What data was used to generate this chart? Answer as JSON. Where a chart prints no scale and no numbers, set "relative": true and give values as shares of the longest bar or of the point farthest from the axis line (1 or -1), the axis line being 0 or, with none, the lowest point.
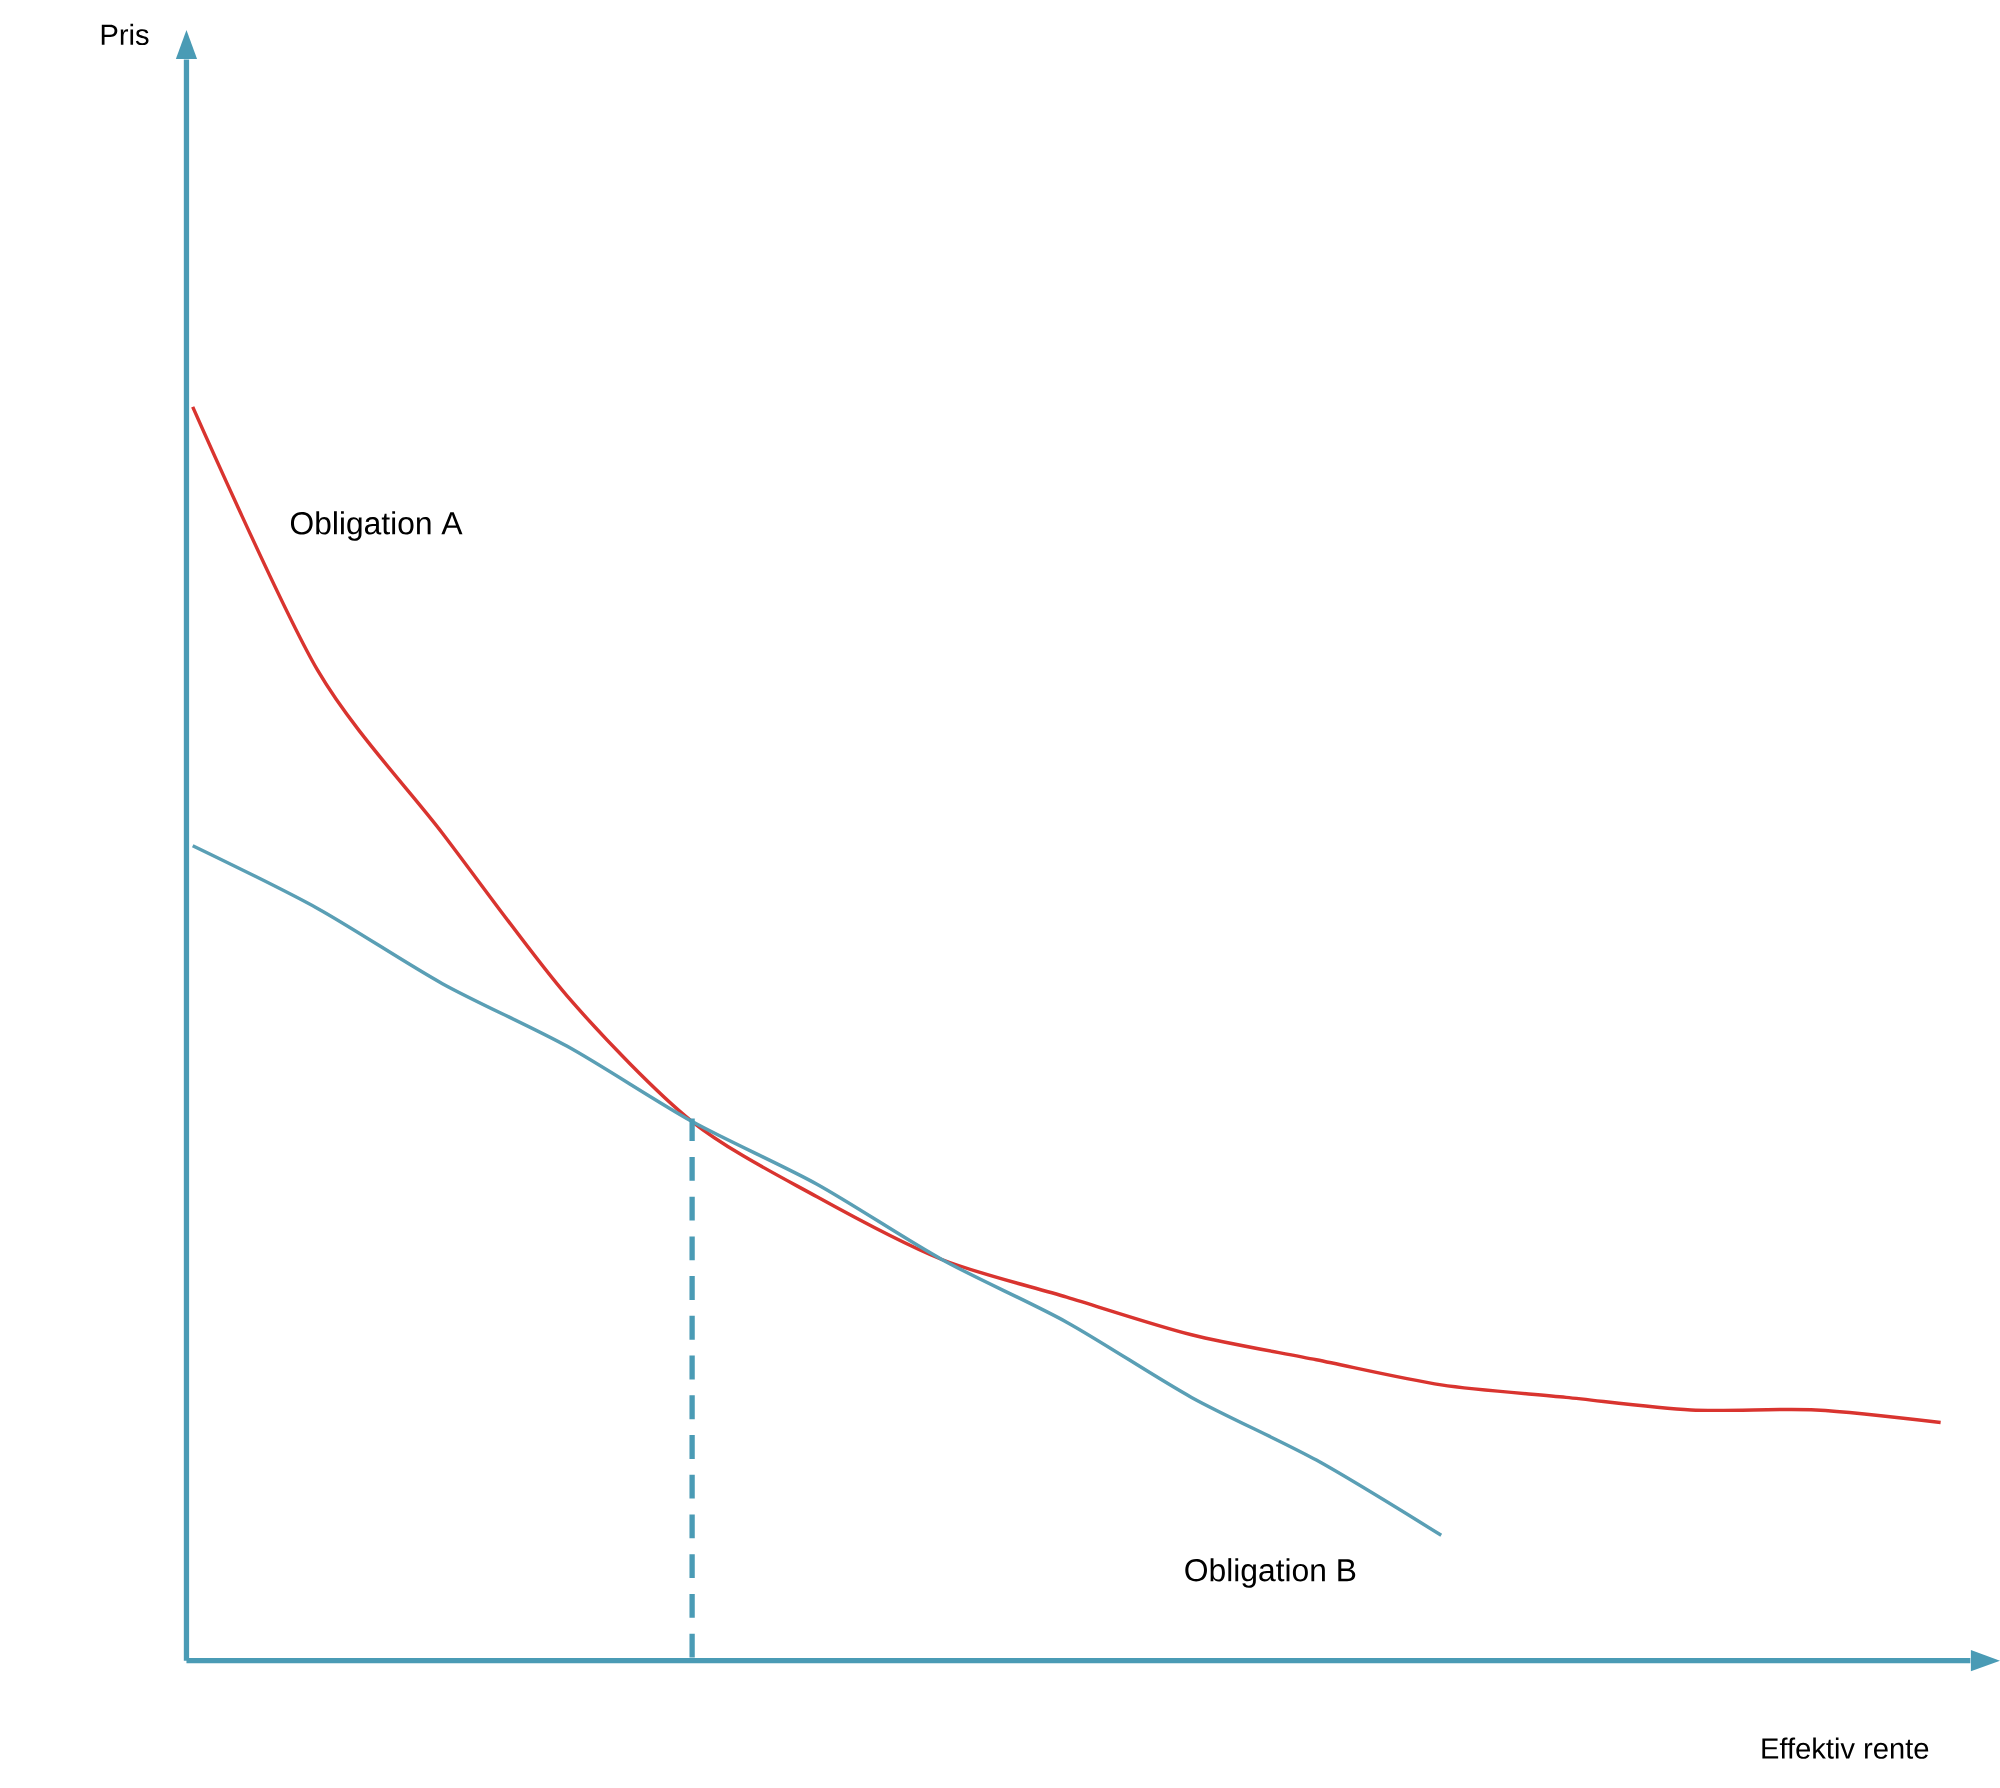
{
  "chart_data": {
    "type": "line",
    "relative": true,
    "xlabel": "Effektiv rente",
    "annotations": [
      "Pris"
    ],
    "categories": [
      null,
      null,
      null,
      null,
      null,
      null,
      null,
      null,
      null,
      null,
      null,
      null,
      null,
      null,
      null
    ],
    "series": [
      {
        "name": "Obligation A",
        "color": "#d9342f",
        "values": [
          1,
          0.79,
          0.66,
          0.53,
          0.43,
          0.37,
          0.32,
          0.29,
          0.26,
          0.24,
          0.22,
          0.21,
          0.2,
          0.2,
          0.19
        ]
      },
      {
        "name": "Obligation B",
        "color": "#5a9fb5",
        "values": [
          0.65,
          0.6,
          0.54,
          0.49,
          0.43,
          0.38,
          0.32,
          0.27,
          0.21,
          0.16,
          0.1,
          null,
          null,
          null,
          null
        ]
      }
    ],
    "marker": "none",
    "line_style": "solid"
  }
}
